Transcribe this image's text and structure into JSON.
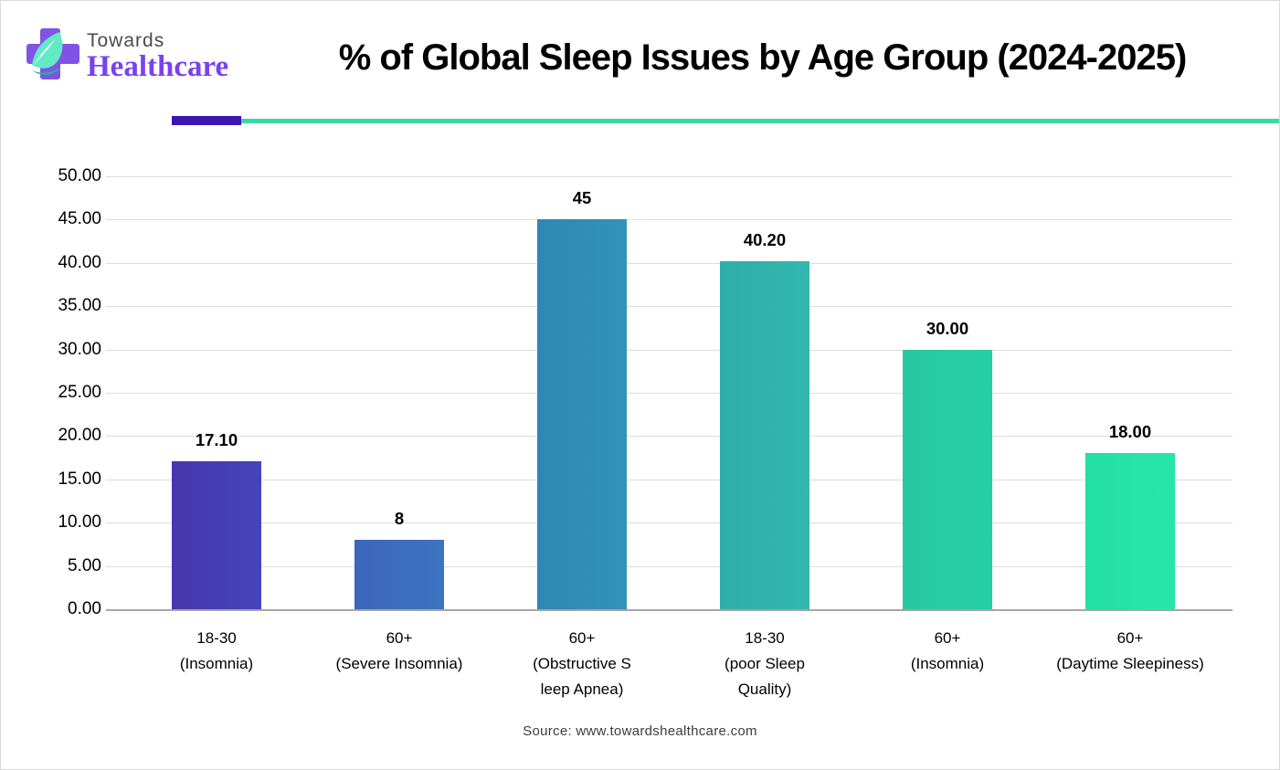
{
  "logo": {
    "towards": "Towards",
    "healthcare": "Healthcare"
  },
  "header": {
    "title": "% of Global Sleep Issues by Age Group (2024-2025)"
  },
  "source": "Source: www.towardshealthcare.com",
  "colors": {
    "accent_purple": "#3b16b2",
    "accent_teal": "#35dba2",
    "logo_cross_purple": "#8153e4",
    "logo_leaf_mint": "#62e9c6",
    "logo_leaf_dark": "#16b89a",
    "gridline": "#dcdcdc",
    "baseline": "#a6a6a6"
  },
  "chart_data": {
    "type": "bar",
    "title": "% of Global Sleep Issues by Age Group (2024-2025)",
    "categories": [
      "18-30\n(Insomnia)",
      "60+\n(Severe Insomnia)",
      "60+\n(Obstructive S\nleep Apnea)",
      "18-30\n(poor Sleep\nQuality)",
      "60+\n(Insomnia)",
      "60+\n(Daytime Sleepiness)"
    ],
    "values": [
      17.1,
      8,
      45,
      40.2,
      30,
      18
    ],
    "labels": [
      "17.10",
      "8",
      "45",
      "40.20",
      "30.00",
      "18.00"
    ],
    "bar_gradients": [
      [
        "#4936ae",
        "#4444bc"
      ],
      [
        "#3b66bb",
        "#3e73c2"
      ],
      [
        "#2f87b2",
        "#3393b8"
      ],
      [
        "#2fada9",
        "#33b7ae"
      ],
      [
        "#29c8a0",
        "#27cfa4"
      ],
      [
        "#24dfa4",
        "#27e6aa"
      ]
    ],
    "xlabel": "",
    "ylabel": "",
    "ylim": [
      0,
      50
    ],
    "ytick_step": 5,
    "yticks": [
      "0.00",
      "5.00",
      "10.00",
      "15.00",
      "20.00",
      "25.00",
      "30.00",
      "35.00",
      "40.00",
      "45.00",
      "50.00"
    ],
    "grid": true,
    "legend": "none"
  }
}
